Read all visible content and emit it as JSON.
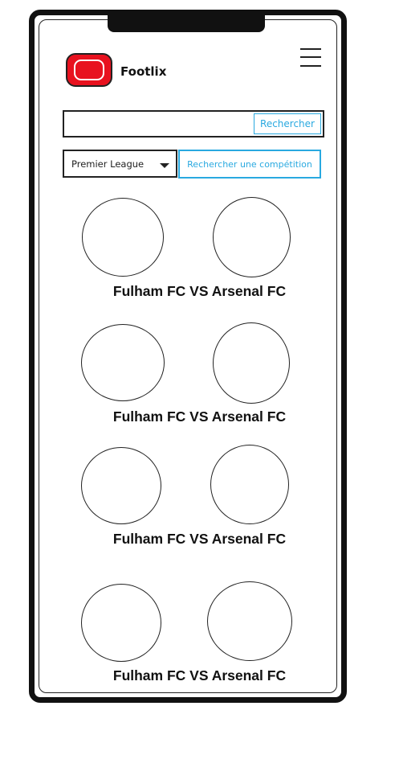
{
  "app": {
    "title": "Footlix",
    "logo_color": "#e8121f",
    "accent_color": "#29a9e0"
  },
  "header": {
    "menu_icon": "hamburger-menu-icon"
  },
  "search": {
    "placeholder": "",
    "value": "",
    "button_label": "Rechercher"
  },
  "competition": {
    "selected": "Premier League",
    "search_button_label": "Rechercher une compétition"
  },
  "matches": [
    {
      "home": "Fulham FC",
      "away": "Arsenal FC",
      "label": "Fulham FC VS Arsenal FC"
    },
    {
      "home": "Fulham FC",
      "away": "Arsenal FC",
      "label": "Fulham FC VS Arsenal FC"
    },
    {
      "home": "Fulham FC",
      "away": "Arsenal FC",
      "label": "Fulham FC VS Arsenal FC"
    },
    {
      "home": "Fulham FC",
      "away": "Arsenal FC",
      "label": "Fulham FC VS Arsenal FC"
    }
  ]
}
